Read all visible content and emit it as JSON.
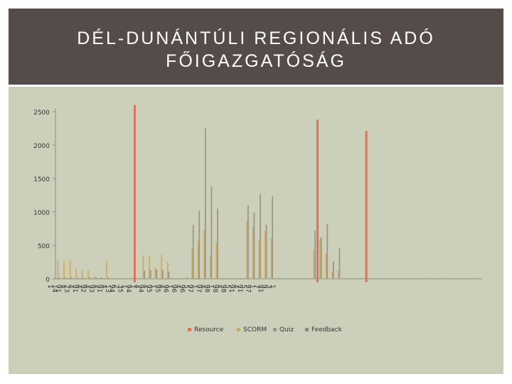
{
  "slide": {
    "title": "DÉL-DUNÁNTÚLI REGIONÁLIS ADÓ\nFŐIGAZGATÓSÁG"
  },
  "colors": {
    "title_band": "#554c4a",
    "title_text": "#ffffff",
    "panel": "#ccd0bb",
    "red_line": "#d9735a",
    "resource": "#d9735a",
    "scorm": "#d1a85c",
    "quiz": "#9a9486",
    "feedback": "#8a877c"
  },
  "chart_data": {
    "type": "bar",
    "title": "",
    "xlabel": "",
    "ylabel": "",
    "ylim": [
      0,
      2500
    ],
    "yticks": [
      0,
      500,
      1000,
      1500,
      2000,
      2500
    ],
    "grid": false,
    "legend_position": "bottom",
    "x_tick_labels": [
      "1",
      "14",
      "91",
      "4",
      "23",
      "4",
      "91",
      "4",
      "92",
      "4",
      "93",
      "4",
      "91",
      "4",
      "13",
      "94",
      "2",
      "35",
      "1",
      "94",
      "1",
      "4",
      "94",
      "4",
      "95",
      "1",
      "95",
      "4",
      "96",
      "1",
      "96",
      "4",
      "96",
      "5",
      "97",
      "1",
      "97",
      "4",
      "98",
      "1",
      "98",
      "4",
      "98",
      "5",
      "91",
      "4",
      "91",
      "5",
      "97",
      "1",
      "7",
      "91",
      "9",
      "3",
      "1"
    ],
    "group_labels": [
      "1",
      "2",
      "3",
      "4",
      "5",
      "6",
      "7",
      "8",
      "9",
      "10",
      "11",
      "12",
      "13",
      "14",
      "15",
      "16",
      "17",
      "18",
      "19",
      "20",
      "21",
      "22",
      "23",
      "24",
      "25",
      "26",
      "27",
      "28",
      "29",
      "30",
      "31",
      "32",
      "33",
      "34",
      "35",
      "36",
      "37",
      "38",
      "39",
      "40",
      "41",
      "42",
      "43",
      "44",
      "45",
      "46",
      "47",
      "48",
      "49",
      "50",
      "51",
      "52",
      "53",
      "54",
      "55",
      "56",
      "57",
      "58",
      "59",
      "60",
      "61",
      "62",
      "63",
      "64",
      "65",
      "66",
      "67",
      "68",
      "69",
      "70"
    ],
    "series": [
      {
        "name": "Resource",
        "values": [
          10,
          0,
          0,
          0,
          0,
          0,
          0,
          0,
          0,
          0,
          0,
          0,
          0,
          0,
          0,
          0,
          0,
          0,
          0,
          0,
          0,
          0,
          0,
          0,
          0,
          0,
          0,
          0,
          0,
          0,
          0,
          0,
          0,
          0,
          0,
          0,
          0,
          0,
          0,
          0,
          0,
          0,
          0,
          0,
          0,
          0,
          0,
          0,
          0,
          0,
          0,
          0,
          0,
          0,
          0,
          0,
          0,
          0,
          0,
          0,
          0,
          0,
          0,
          0,
          0,
          0,
          0,
          0,
          0,
          0
        ]
      },
      {
        "name": "SCORM",
        "values": [
          280,
          260,
          280,
          150,
          130,
          120,
          30,
          20,
          270,
          0,
          0,
          0,
          0,
          0,
          350,
          340,
          170,
          360,
          250,
          0,
          0,
          0,
          450,
          570,
          730,
          340,
          540,
          0,
          0,
          0,
          0,
          860,
          780,
          570,
          720,
          600,
          0,
          0,
          0,
          0,
          0,
          0,
          440,
          600,
          380,
          110,
          120,
          0,
          0,
          0,
          0,
          0,
          0,
          0,
          0,
          0,
          0,
          0,
          0,
          0,
          0,
          0,
          0,
          0,
          0,
          0,
          0,
          0,
          0,
          0
        ]
      },
      {
        "name": "Quiz",
        "values": [
          20,
          20,
          20,
          15,
          15,
          20,
          20,
          20,
          20,
          0,
          0,
          0,
          0,
          0,
          120,
          130,
          140,
          130,
          110,
          0,
          0,
          20,
          810,
          1020,
          2250,
          1390,
          1050,
          10,
          10,
          10,
          10,
          1100,
          990,
          1270,
          810,
          1230,
          10,
          10,
          10,
          10,
          0,
          0,
          720,
          620,
          820,
          260,
          460,
          0,
          0,
          0,
          0,
          10,
          10,
          10,
          10,
          0,
          0,
          0,
          0,
          0,
          10,
          10,
          10,
          10,
          0,
          10,
          10,
          10,
          10,
          10
        ]
      },
      {
        "name": "Feedback",
        "values": [
          0,
          0,
          0,
          0,
          0,
          0,
          0,
          0,
          0,
          0,
          0,
          0,
          0,
          0,
          0,
          0,
          0,
          0,
          0,
          0,
          0,
          0,
          0,
          0,
          0,
          0,
          0,
          0,
          0,
          0,
          0,
          0,
          0,
          0,
          0,
          0,
          0,
          0,
          0,
          0,
          0,
          0,
          0,
          0,
          0,
          0,
          0,
          0,
          0,
          0,
          0,
          0,
          0,
          0,
          0,
          0,
          0,
          0,
          0,
          0,
          0,
          0,
          0,
          0,
          0,
          0,
          0,
          0,
          0,
          0
        ]
      }
    ],
    "vertical_reference_lines": [
      {
        "after_group": "13",
        "value_top": 2600
      },
      {
        "after_group": "43",
        "value_top": 2380
      },
      {
        "after_group": "51",
        "value_top": 2210
      }
    ]
  }
}
